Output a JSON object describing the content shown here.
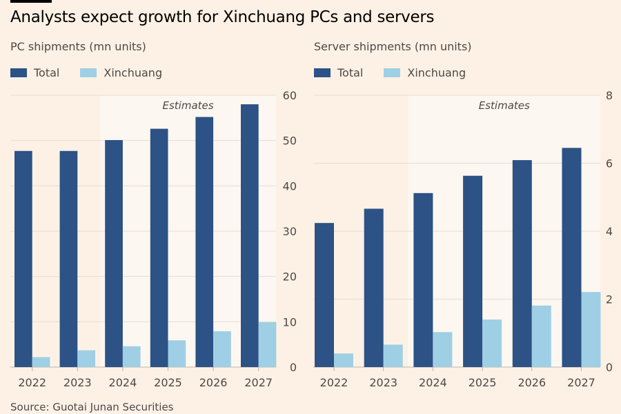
{
  "title": "Analysts expect growth for Xinchuang PCs and servers",
  "source": "Source: Guotai Junan Securities",
  "colors": {
    "total": "#2c5286",
    "xinchuang": "#9fcfe4",
    "background": "#fdf1e6",
    "estimates_shade": "#fdf7f1"
  },
  "chart_data": [
    {
      "type": "bar",
      "title": "PC shipments (mn units)",
      "categories": [
        "2022",
        "2023",
        "2024",
        "2025",
        "2026",
        "2027"
      ],
      "series": [
        {
          "name": "Total",
          "values": [
            47.7,
            47.7,
            50.1,
            52.6,
            55.2,
            58.0
          ]
        },
        {
          "name": "Xinchuang",
          "values": [
            2.2,
            3.7,
            4.6,
            5.9,
            7.9,
            9.9
          ]
        }
      ],
      "ylim": [
        0,
        60
      ],
      "yticks": [
        0,
        10,
        20,
        30,
        40,
        50,
        60
      ],
      "annotation": "Estimates",
      "estimates_from": "2024",
      "grid": true,
      "legend": "top-left"
    },
    {
      "type": "bar",
      "title": "Server shipments (mn units)",
      "categories": [
        "2022",
        "2023",
        "2024",
        "2025",
        "2026",
        "2027"
      ],
      "series": [
        {
          "name": "Total",
          "values": [
            4.24,
            4.66,
            5.12,
            5.63,
            6.09,
            6.45
          ]
        },
        {
          "name": "Xinchuang",
          "values": [
            0.4,
            0.66,
            1.03,
            1.4,
            1.81,
            2.21
          ]
        }
      ],
      "ylim": [
        0,
        8
      ],
      "yticks": [
        0,
        2,
        4,
        6,
        8
      ],
      "annotation": "Estimates",
      "estimates_from": "2024",
      "grid": true,
      "legend": "top-left"
    }
  ]
}
